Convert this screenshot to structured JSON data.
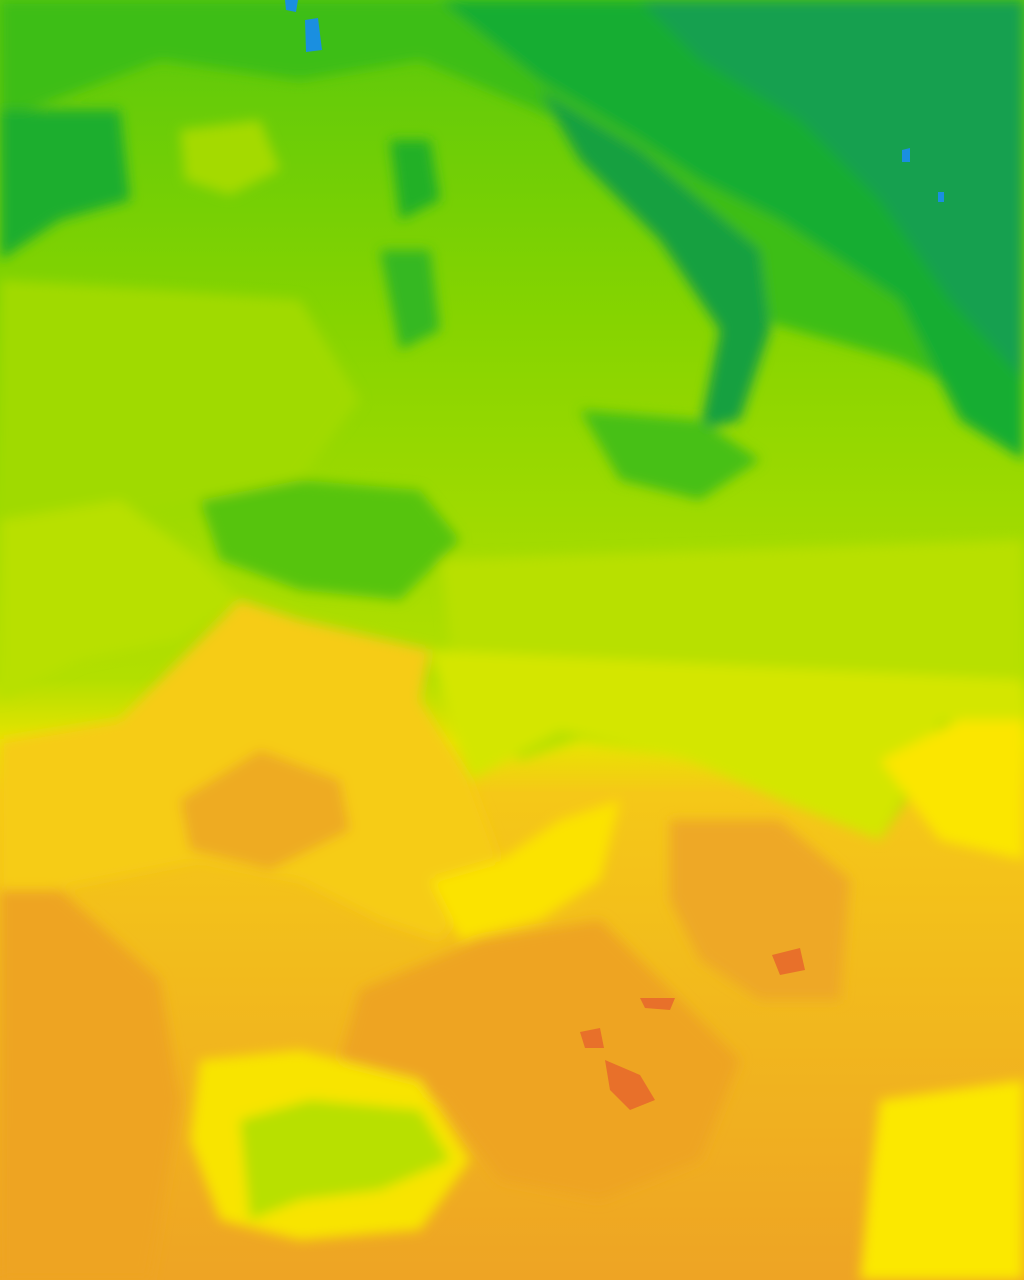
{
  "map": {
    "type": "temperature-contour-field",
    "palette": {
      "blue": "#1a8fe0",
      "teal": "#16a05a",
      "dark_green": "#1ab52a",
      "green": "#4ec40e",
      "light_green": "#86d400",
      "yellow_green": "#b2df00",
      "lime": "#d4e600",
      "yellow": "#fbe800",
      "gold": "#f5c818",
      "orange": "#eea424",
      "dark_orange": "#e8702a"
    }
  }
}
